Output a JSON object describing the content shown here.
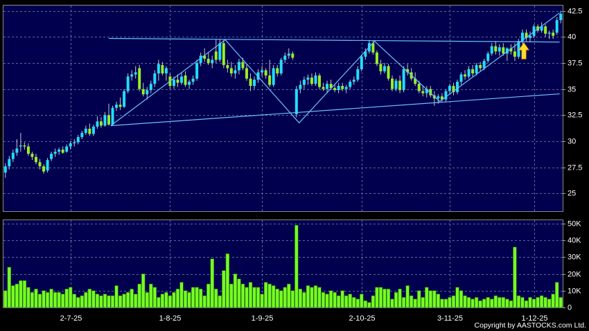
{
  "chart_data": {
    "type": "candlestick",
    "xlim": [
      -0.5,
      145.5
    ],
    "xticks": [
      {
        "value": 17,
        "label": "2-7-25"
      },
      {
        "value": 43,
        "label": "1-8-25"
      },
      {
        "value": 67,
        "label": "1-9-25"
      },
      {
        "value": 93,
        "label": "2-10-25"
      },
      {
        "value": 116,
        "label": "3-11-25"
      },
      {
        "value": 138,
        "label": "1-12-25"
      }
    ],
    "ylim": [
      23.3,
      43
    ],
    "yticks": [
      25,
      27.5,
      30,
      32.5,
      35,
      37.5,
      {
        "value": 40,
        "label": "40"
      },
      42.5
    ],
    "up_color": "#22ddff",
    "down_color": "#99ee22",
    "wick_color": "#c8c8c8",
    "ohlc": [
      [
        27.0,
        27.9,
        26.5,
        27.6
      ],
      [
        27.6,
        28.6,
        27.3,
        28.3
      ],
      [
        28.3,
        29.2,
        28.0,
        28.9
      ],
      [
        28.9,
        30.2,
        28.6,
        29.3
      ],
      [
        29.5,
        30.8,
        29.0,
        29.6
      ],
      [
        29.6,
        29.9,
        29.2,
        29.5
      ],
      [
        29.5,
        29.8,
        28.6,
        28.8
      ],
      [
        28.8,
        29.0,
        28.2,
        28.5
      ],
      [
        28.5,
        28.8,
        27.8,
        28.0
      ],
      [
        28.0,
        28.3,
        27.3,
        27.6
      ],
      [
        27.6,
        27.8,
        26.9,
        27.1
      ],
      [
        27.2,
        28.4,
        27.0,
        28.2
      ],
      [
        28.3,
        29.0,
        28.1,
        28.8
      ],
      [
        28.8,
        29.3,
        28.5,
        29.0
      ],
      [
        29.0,
        29.4,
        28.7,
        29.2
      ],
      [
        29.2,
        29.5,
        28.8,
        28.9
      ],
      [
        29.0,
        29.7,
        28.9,
        29.5
      ],
      [
        29.5,
        30.0,
        29.2,
        29.8
      ],
      [
        29.8,
        30.2,
        29.5,
        29.9
      ],
      [
        29.9,
        30.6,
        29.7,
        30.4
      ],
      [
        30.4,
        31.0,
        30.2,
        30.8
      ],
      [
        30.8,
        31.5,
        30.6,
        31.2
      ],
      [
        31.2,
        31.7,
        30.5,
        30.7
      ],
      [
        30.7,
        31.6,
        30.5,
        31.4
      ],
      [
        31.4,
        32.4,
        31.2,
        31.9
      ],
      [
        31.9,
        32.3,
        31.3,
        31.5
      ],
      [
        31.5,
        32.8,
        31.4,
        32.5
      ],
      [
        32.5,
        33.6,
        31.5,
        31.6
      ],
      [
        31.6,
        33.4,
        31.5,
        33.2
      ],
      [
        33.2,
        33.8,
        32.9,
        33.5
      ],
      [
        33.5,
        34.2,
        33.0,
        33.3
      ],
      [
        33.3,
        35.0,
        33.2,
        34.8
      ],
      [
        34.8,
        36.5,
        34.6,
        36.2
      ],
      [
        36.2,
        36.8,
        35.8,
        36.4
      ],
      [
        36.4,
        37.2,
        36.0,
        36.6
      ],
      [
        37.0,
        37.3,
        34.8,
        35.0
      ],
      [
        35.0,
        35.6,
        34.3,
        34.5
      ],
      [
        34.5,
        35.2,
        34.0,
        34.9
      ],
      [
        34.9,
        35.8,
        34.6,
        35.5
      ],
      [
        35.5,
        36.8,
        35.2,
        36.5
      ],
      [
        36.5,
        37.8,
        35.8,
        37.4
      ],
      [
        37.3,
        37.6,
        36.3,
        36.5
      ],
      [
        36.5,
        37.2,
        35.8,
        37.0
      ],
      [
        36.2,
        36.5,
        35.0,
        35.3
      ],
      [
        35.3,
        36.2,
        35.0,
        35.9
      ],
      [
        35.9,
        36.4,
        35.2,
        35.6
      ],
      [
        35.6,
        36.6,
        35.4,
        36.2
      ],
      [
        36.3,
        36.7,
        35.2,
        35.4
      ],
      [
        35.4,
        35.9,
        35.0,
        35.7
      ],
      [
        35.7,
        36.3,
        35.4,
        36.0
      ],
      [
        36.0,
        37.8,
        35.8,
        37.5
      ],
      [
        37.5,
        38.5,
        37.2,
        38.2
      ],
      [
        38.2,
        38.9,
        37.6,
        37.9
      ],
      [
        37.9,
        38.5,
        37.3,
        37.5
      ],
      [
        37.5,
        38.2,
        37.0,
        37.8
      ],
      [
        38.6,
        39.8,
        37.5,
        37.8
      ],
      [
        37.8,
        39.8,
        37.6,
        39.4
      ],
      [
        39.4,
        39.7,
        37.0,
        37.3
      ],
      [
        37.3,
        37.8,
        36.6,
        37.0
      ],
      [
        37.0,
        37.6,
        36.2,
        36.5
      ],
      [
        36.5,
        37.3,
        36.0,
        36.8
      ],
      [
        36.8,
        37.9,
        36.4,
        37.6
      ],
      [
        37.6,
        38.0,
        36.8,
        37.0
      ],
      [
        37.0,
        37.4,
        35.8,
        36.0
      ],
      [
        36.0,
        36.5,
        34.8,
        35.3
      ],
      [
        35.3,
        36.2,
        35.0,
        35.9
      ],
      [
        35.9,
        36.9,
        35.6,
        36.6
      ],
      [
        36.6,
        37.2,
        36.2,
        36.8
      ],
      [
        36.8,
        37.0,
        36.0,
        36.3
      ],
      [
        36.3,
        37.8,
        35.2,
        35.4
      ],
      [
        35.4,
        37.3,
        35.2,
        37.0
      ],
      [
        37.0,
        37.3,
        36.2,
        36.5
      ],
      [
        36.5,
        38.0,
        36.3,
        37.8
      ],
      [
        37.8,
        38.5,
        37.5,
        38.2
      ],
      [
        38.2,
        38.9,
        37.9,
        38.4
      ],
      [
        38.4,
        38.6,
        37.8,
        38.0
      ],
      [
        32.6,
        35.3,
        32.3,
        35.0
      ],
      [
        35.0,
        35.8,
        34.6,
        35.4
      ],
      [
        35.4,
        36.2,
        35.0,
        35.9
      ],
      [
        35.9,
        36.4,
        35.4,
        36.1
      ],
      [
        36.1,
        36.5,
        35.3,
        35.5
      ],
      [
        35.5,
        36.6,
        35.3,
        36.3
      ],
      [
        36.3,
        36.5,
        35.0,
        35.2
      ],
      [
        35.2,
        35.6,
        34.8,
        35.0
      ],
      [
        35.0,
        35.8,
        34.6,
        35.5
      ],
      [
        35.5,
        35.9,
        34.9,
        35.1
      ],
      [
        35.1,
        35.5,
        34.7,
        34.9
      ],
      [
        34.9,
        35.6,
        34.6,
        35.3
      ],
      [
        35.3,
        35.6,
        34.8,
        35.0
      ],
      [
        35.0,
        35.4,
        34.6,
        35.2
      ],
      [
        35.2,
        35.9,
        35.0,
        35.7
      ],
      [
        35.7,
        36.2,
        35.4,
        35.9
      ],
      [
        35.9,
        37.2,
        35.7,
        36.9
      ],
      [
        36.9,
        38.3,
        36.7,
        38.1
      ],
      [
        38.1,
        38.9,
        37.8,
        38.6
      ],
      [
        38.6,
        39.7,
        38.4,
        39.4
      ],
      [
        39.4,
        39.6,
        38.3,
        38.5
      ],
      [
        38.5,
        38.7,
        37.2,
        37.4
      ],
      [
        37.4,
        37.8,
        36.4,
        36.7
      ],
      [
        36.7,
        37.5,
        36.5,
        37.2
      ],
      [
        37.2,
        37.4,
        35.8,
        36.0
      ],
      [
        36.0,
        36.3,
        34.8,
        35.0
      ],
      [
        35.0,
        36.0,
        34.8,
        35.8
      ],
      [
        35.8,
        36.3,
        34.6,
        34.9
      ],
      [
        34.9,
        37.2,
        34.7,
        36.9
      ],
      [
        36.9,
        37.4,
        36.3,
        36.6
      ],
      [
        36.6,
        37.0,
        35.8,
        36.0
      ],
      [
        36.0,
        36.6,
        35.3,
        35.5
      ],
      [
        35.5,
        35.8,
        34.6,
        34.8
      ],
      [
        34.8,
        35.3,
        34.3,
        34.6
      ],
      [
        34.6,
        35.3,
        34.2,
        35.0
      ],
      [
        35.0,
        35.3,
        34.2,
        34.4
      ],
      [
        34.4,
        34.8,
        33.4,
        34.1
      ],
      [
        34.1,
        34.5,
        33.6,
        34.3
      ],
      [
        34.3,
        34.6,
        33.8,
        34.0
      ],
      [
        34.0,
        35.0,
        33.8,
        34.8
      ],
      [
        34.8,
        35.5,
        34.5,
        35.3
      ],
      [
        35.3,
        35.6,
        34.4,
        34.7
      ],
      [
        34.7,
        35.9,
        34.5,
        35.7
      ],
      [
        35.7,
        36.6,
        35.4,
        36.4
      ],
      [
        36.4,
        36.8,
        35.9,
        36.2
      ],
      [
        36.2,
        37.2,
        36.0,
        36.9
      ],
      [
        36.9,
        37.3,
        36.2,
        36.5
      ],
      [
        36.5,
        37.5,
        36.3,
        37.3
      ],
      [
        37.3,
        37.6,
        36.7,
        37.0
      ],
      [
        37.0,
        37.9,
        36.8,
        37.7
      ],
      [
        37.7,
        38.6,
        37.5,
        38.4
      ],
      [
        38.4,
        39.4,
        38.2,
        39.1
      ],
      [
        39.1,
        39.6,
        38.3,
        38.6
      ],
      [
        38.6,
        39.3,
        38.2,
        39.0
      ],
      [
        39.0,
        39.4,
        38.2,
        38.4
      ],
      [
        38.4,
        39.0,
        37.7,
        38.9
      ],
      [
        38.9,
        39.3,
        38.3,
        38.6
      ],
      [
        38.6,
        39.4,
        37.7,
        38.1
      ],
      [
        38.1,
        39.8,
        37.9,
        39.6
      ],
      [
        39.6,
        40.7,
        39.3,
        40.4
      ],
      [
        40.4,
        40.7,
        39.6,
        39.9
      ],
      [
        39.9,
        40.5,
        39.5,
        40.1
      ],
      [
        40.1,
        41.2,
        39.9,
        41.0
      ],
      [
        41.0,
        41.2,
        40.4,
        40.6
      ],
      [
        40.6,
        41.4,
        40.4,
        41.0
      ],
      [
        41.0,
        41.2,
        40.0,
        40.3
      ],
      [
        40.3,
        40.6,
        39.8,
        40.4
      ],
      [
        40.4,
        40.7,
        39.8,
        40.1
      ],
      [
        40.4,
        41.9,
        40.2,
        41.6
      ],
      [
        41.6,
        42.5,
        41.3,
        42.2
      ]
    ],
    "lines": [
      {
        "x": [
          27,
          144.7
        ],
        "y": [
          39.85,
          39.5
        ]
      },
      {
        "x": [
          27.5,
          144.7
        ],
        "y": [
          31.49,
          34.54
        ]
      },
      {
        "x": [
          27.5,
          57.4,
          76.7,
          96.4,
          113.4,
          144.7
        ],
        "y": [
          31.49,
          39.72,
          31.76,
          39.58,
          33.81,
          42.3
        ]
      }
    ],
    "line_color": "#6ec0ff",
    "volume": [
      10000,
      24000,
      13000,
      14000,
      16000,
      16000,
      12000,
      9000,
      11000,
      8000,
      10000,
      9000,
      11000,
      9000,
      9000,
      8000,
      11000,
      12000,
      8000,
      6000,
      7000,
      9000,
      11000,
      10000,
      8000,
      7000,
      8000,
      7000,
      7000,
      13000,
      7000,
      8000,
      9000,
      11000,
      8000,
      14000,
      20000,
      9000,
      14000,
      12000,
      6000,
      8000,
      9000,
      7000,
      9000,
      11000,
      15000,
      10000,
      9000,
      12000,
      12000,
      11000,
      7000,
      14000,
      29000,
      11000,
      7000,
      22000,
      32000,
      14000,
      20000,
      17000,
      14000,
      12000,
      15000,
      12000,
      12000,
      8000,
      15000,
      14000,
      13000,
      11000,
      10000,
      12000,
      14000,
      10000,
      49000,
      11000,
      9000,
      13000,
      12000,
      13000,
      12000,
      9000,
      8000,
      10000,
      9000,
      7000,
      10000,
      7000,
      8000,
      6000,
      5000,
      8000,
      4000,
      3000,
      7000,
      12000,
      12000,
      11000,
      11000,
      5000,
      9000,
      11000,
      6000,
      13000,
      7000,
      5000,
      10000,
      6000,
      12000,
      10000,
      10000,
      8000,
      5000,
      5000,
      6000,
      7000,
      12000,
      10000,
      7000,
      6000,
      5000,
      6000,
      4000,
      5000,
      6000,
      5000,
      7000,
      6000,
      6000,
      5000,
      4000,
      36000,
      7000,
      6000,
      4000,
      6000,
      5000,
      6000,
      7000,
      6000,
      5000,
      8000,
      15000,
      6000
    ],
    "volume_color": "#77ff22",
    "volume_ylim": [
      0,
      52000
    ],
    "volume_yticks": [
      0,
      {
        "value": 10000,
        "label": "10K"
      },
      {
        "value": 20000,
        "label": "20K"
      },
      {
        "value": 30000,
        "label": "30K"
      },
      {
        "value": 40000,
        "label": "40K"
      },
      {
        "value": 50000,
        "label": "50K"
      }
    ]
  },
  "footer": "Copyright by AASTOCKS.com Ltd."
}
